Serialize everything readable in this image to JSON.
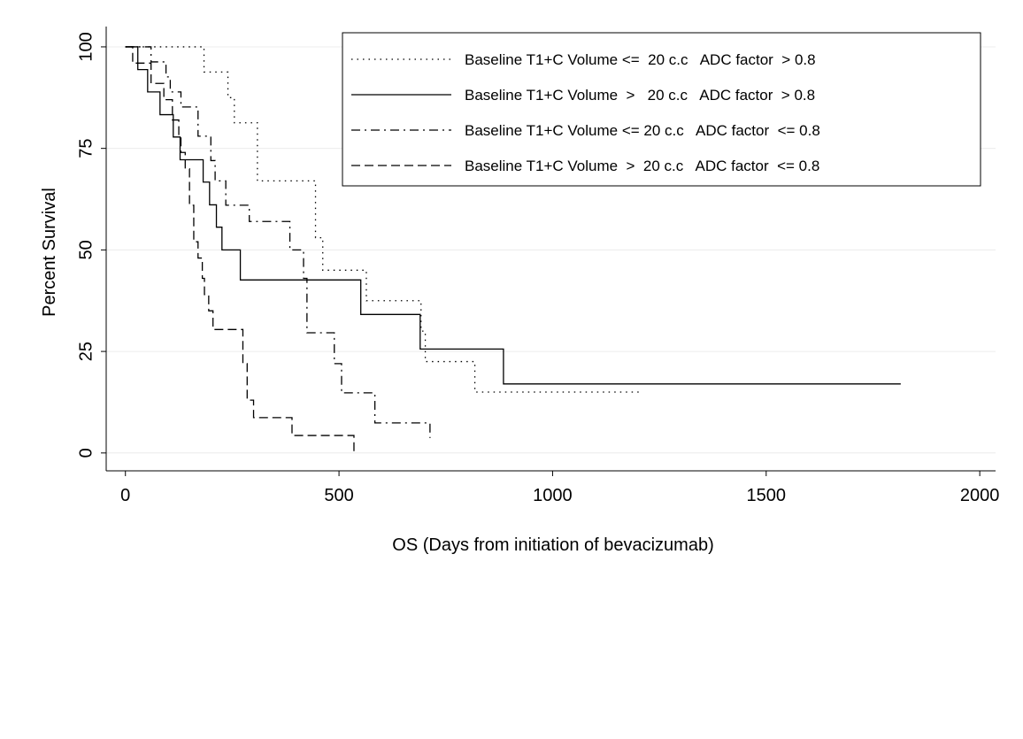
{
  "chart_data": {
    "type": "step",
    "x_label": "OS (Days from initiation of bevacizumab)",
    "y_label": "Percent Survival",
    "xlim": [
      -45,
      2037
    ],
    "ylim": [
      -4.4,
      105
    ],
    "xticks": [
      0,
      500,
      1000,
      1500,
      2000
    ],
    "yticks": [
      0,
      25,
      50,
      75,
      100
    ],
    "grid": true,
    "legend": "top-right",
    "series": [
      {
        "name": "Baseline T1+C Volume <=  20 c.c   ADC factor  > 0.8",
        "color": "#000000",
        "dash": "1.5,5",
        "x": [
          0,
          184,
          240,
          255,
          309,
          445,
          462,
          564,
          692,
          702,
          818,
          1206
        ],
        "values": [
          100,
          93.8,
          87.5,
          81.3,
          67,
          53,
          45,
          37.5,
          30,
          22.5,
          15,
          15
        ]
      },
      {
        "name": "Baseline T1+C Volume  >   20 c.c   ADC factor  > 0.8",
        "color": "#000000",
        "dash": "none",
        "x": [
          0,
          29,
          52,
          81,
          112,
          128,
          182,
          197,
          213,
          226,
          269,
          551,
          690,
          885,
          1815
        ],
        "values": [
          100,
          94.4,
          88.9,
          83.3,
          77.8,
          72.2,
          66.7,
          61.1,
          55.6,
          50,
          42.6,
          34.1,
          25.6,
          17,
          17
        ]
      },
      {
        "name": "Baseline T1+C Volume <= 20 c.c   ADC factor  <= 0.8",
        "color": "#000000",
        "dash": "10,5,2,5",
        "x": [
          0,
          60,
          95,
          105,
          130,
          170,
          200,
          210,
          235,
          290,
          385,
          417,
          425,
          489,
          506,
          584,
          713
        ],
        "values": [
          100,
          96.3,
          92.6,
          88.9,
          85.2,
          78,
          72,
          67,
          61,
          57,
          50,
          43,
          29.6,
          22,
          14.8,
          7.4,
          3.7
        ]
      },
      {
        "name": "Baseline T1+C Volume  >  20 c.c   ADC factor  <= 0.8",
        "color": "#000000",
        "dash": "10,5",
        "x": [
          0,
          17,
          60,
          90,
          110,
          125,
          130,
          140,
          150,
          160,
          170,
          180,
          185,
          195,
          205,
          275,
          285,
          300,
          390,
          535
        ],
        "values": [
          100,
          96,
          91,
          87,
          82,
          78,
          74,
          70,
          61,
          52,
          48,
          43,
          39,
          35,
          30.4,
          22,
          13,
          8.7,
          4.3,
          0
        ]
      }
    ]
  }
}
